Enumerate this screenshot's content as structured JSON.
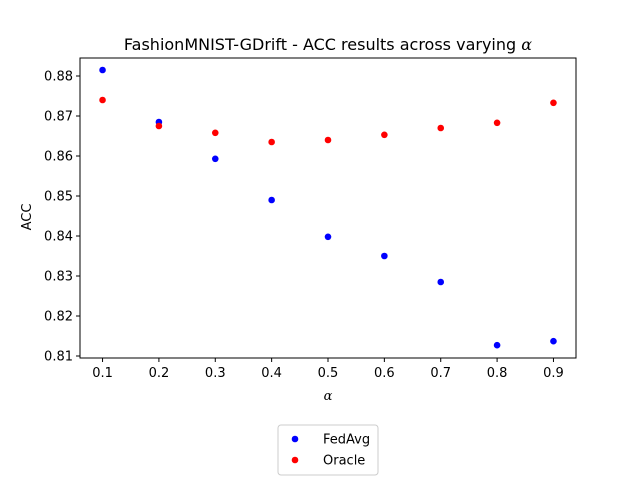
{
  "chart_data": {
    "type": "scatter",
    "title_prefix": "FashionMNIST-GDrift - ACC results across varying ",
    "title_symbol": "α",
    "xlabel": "α",
    "ylabel": "ACC",
    "x": [
      0.1,
      0.2,
      0.3,
      0.4,
      0.5,
      0.6,
      0.7,
      0.8,
      0.9
    ],
    "xticks": [
      "0.1",
      "0.2",
      "0.3",
      "0.4",
      "0.5",
      "0.6",
      "0.7",
      "0.8",
      "0.9"
    ],
    "yticks": [
      "0.81",
      "0.82",
      "0.83",
      "0.84",
      "0.85",
      "0.86",
      "0.87",
      "0.88"
    ],
    "xlim": [
      0.06,
      0.94
    ],
    "ylim": [
      0.8095,
      0.8845
    ],
    "grid": false,
    "legend_position": "below-center",
    "series": [
      {
        "name": "FedAvg",
        "color": "#0000ff",
        "values": [
          0.8815,
          0.8685,
          0.8593,
          0.849,
          0.8398,
          0.835,
          0.8285,
          0.8127,
          0.8137
        ]
      },
      {
        "name": "Oracle",
        "color": "#ff0000",
        "values": [
          0.874,
          0.8675,
          0.8658,
          0.8635,
          0.864,
          0.8653,
          0.867,
          0.8683,
          0.8733
        ]
      }
    ]
  }
}
